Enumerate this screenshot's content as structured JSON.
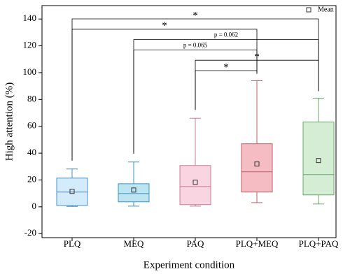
{
  "chart_data": {
    "type": "box",
    "ylabel": "High attention (%)",
    "xlabel": "Experiment condition",
    "categories": [
      "PLQ",
      "MEQ",
      "PAQ",
      "PLQ+MEQ",
      "PLQ+PAQ"
    ],
    "min": [
      0.3,
      0.5,
      0.5,
      3.1,
      2.1
    ],
    "q1": [
      1,
      3.7,
      1.6,
      11,
      8.9
    ],
    "median": [
      11,
      9.9,
      15.1,
      26.1,
      24
    ],
    "q3": [
      21.4,
      17.2,
      30.8,
      47,
      63.2
    ],
    "max": [
      28.2,
      33.4,
      66,
      94,
      81
    ],
    "mean": [
      11.5,
      12.5,
      18.3,
      31.9,
      34.5
    ],
    "colors": [
      "#d3ebfa",
      "#bde4f3",
      "#f8d5e0",
      "#f5bcc4",
      "#d6edd5"
    ],
    "edge_colors": [
      "#4a90c8",
      "#3a95b8",
      "#c97b95",
      "#c25f6e",
      "#6aa86a"
    ],
    "legend": "Mean",
    "annotations": [
      {
        "text": "*",
        "from": "PLQ",
        "to": "PLQ+PAQ"
      },
      {
        "text": "*",
        "from": "PLQ",
        "to": "PLQ+MEQ"
      },
      {
        "text": "p = 0.062",
        "from": "MEQ",
        "to": "PLQ+PAQ"
      },
      {
        "text": "p = 0.065",
        "from": "MEQ",
        "to": "PLQ+MEQ"
      },
      {
        "text": "*",
        "from": "PAQ",
        "to": "PLQ+PAQ"
      },
      {
        "text": "*",
        "from": "PAQ",
        "to": "PLQ+MEQ"
      }
    ],
    "ylim": [
      -23,
      150
    ],
    "yticks": [
      -20,
      0,
      20,
      40,
      60,
      80,
      100,
      120,
      140
    ]
  }
}
